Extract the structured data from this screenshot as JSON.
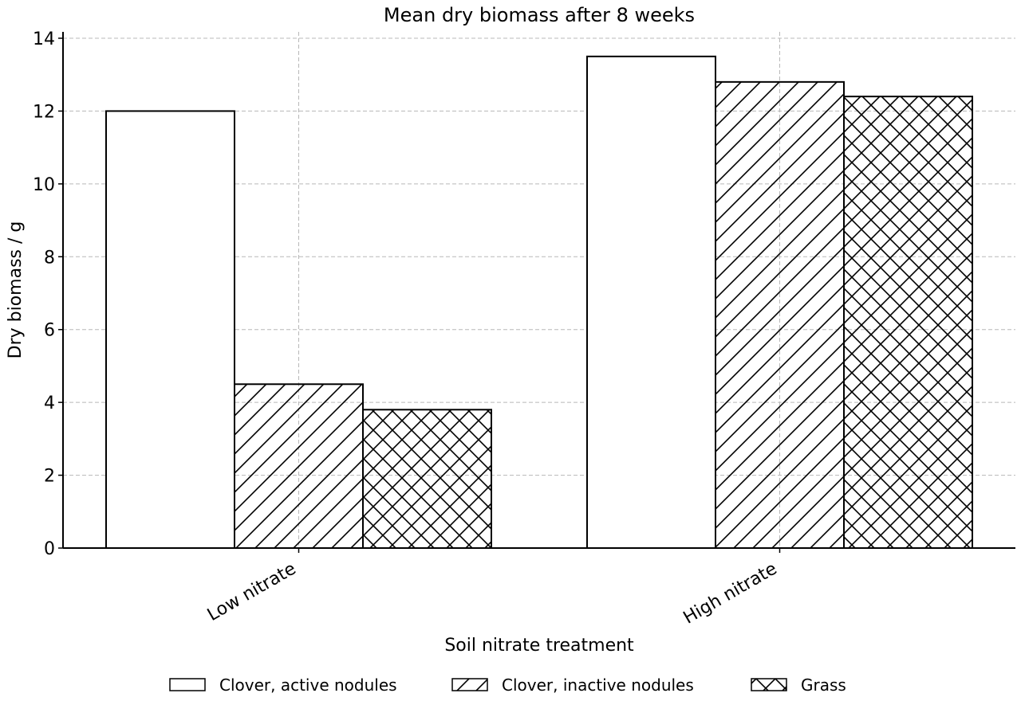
{
  "chart_data": {
    "type": "bar",
    "title": "Mean dry biomass after 8 weeks",
    "xlabel": "Soil nitrate treatment",
    "ylabel": "Dry biomass / g",
    "categories": [
      "Low nitrate",
      "High nitrate"
    ],
    "series": [
      {
        "name": "Clover, active nodules",
        "values": [
          12.0,
          13.5
        ],
        "hatch": "none"
      },
      {
        "name": "Clover, inactive nodules",
        "values": [
          4.5,
          12.8
        ],
        "hatch": "diagonal"
      },
      {
        "name": "Grass",
        "values": [
          3.8,
          12.4
        ],
        "hatch": "crosshatch"
      }
    ],
    "ylim": [
      0,
      14
    ],
    "yticks": [
      0,
      2,
      4,
      6,
      8,
      10,
      12,
      14
    ],
    "grid": true,
    "legend_position": "bottom-center",
    "colors": {
      "bar_fill": "#ffffff",
      "bar_edge": "#000000",
      "grid": "#b8b8b8"
    }
  }
}
